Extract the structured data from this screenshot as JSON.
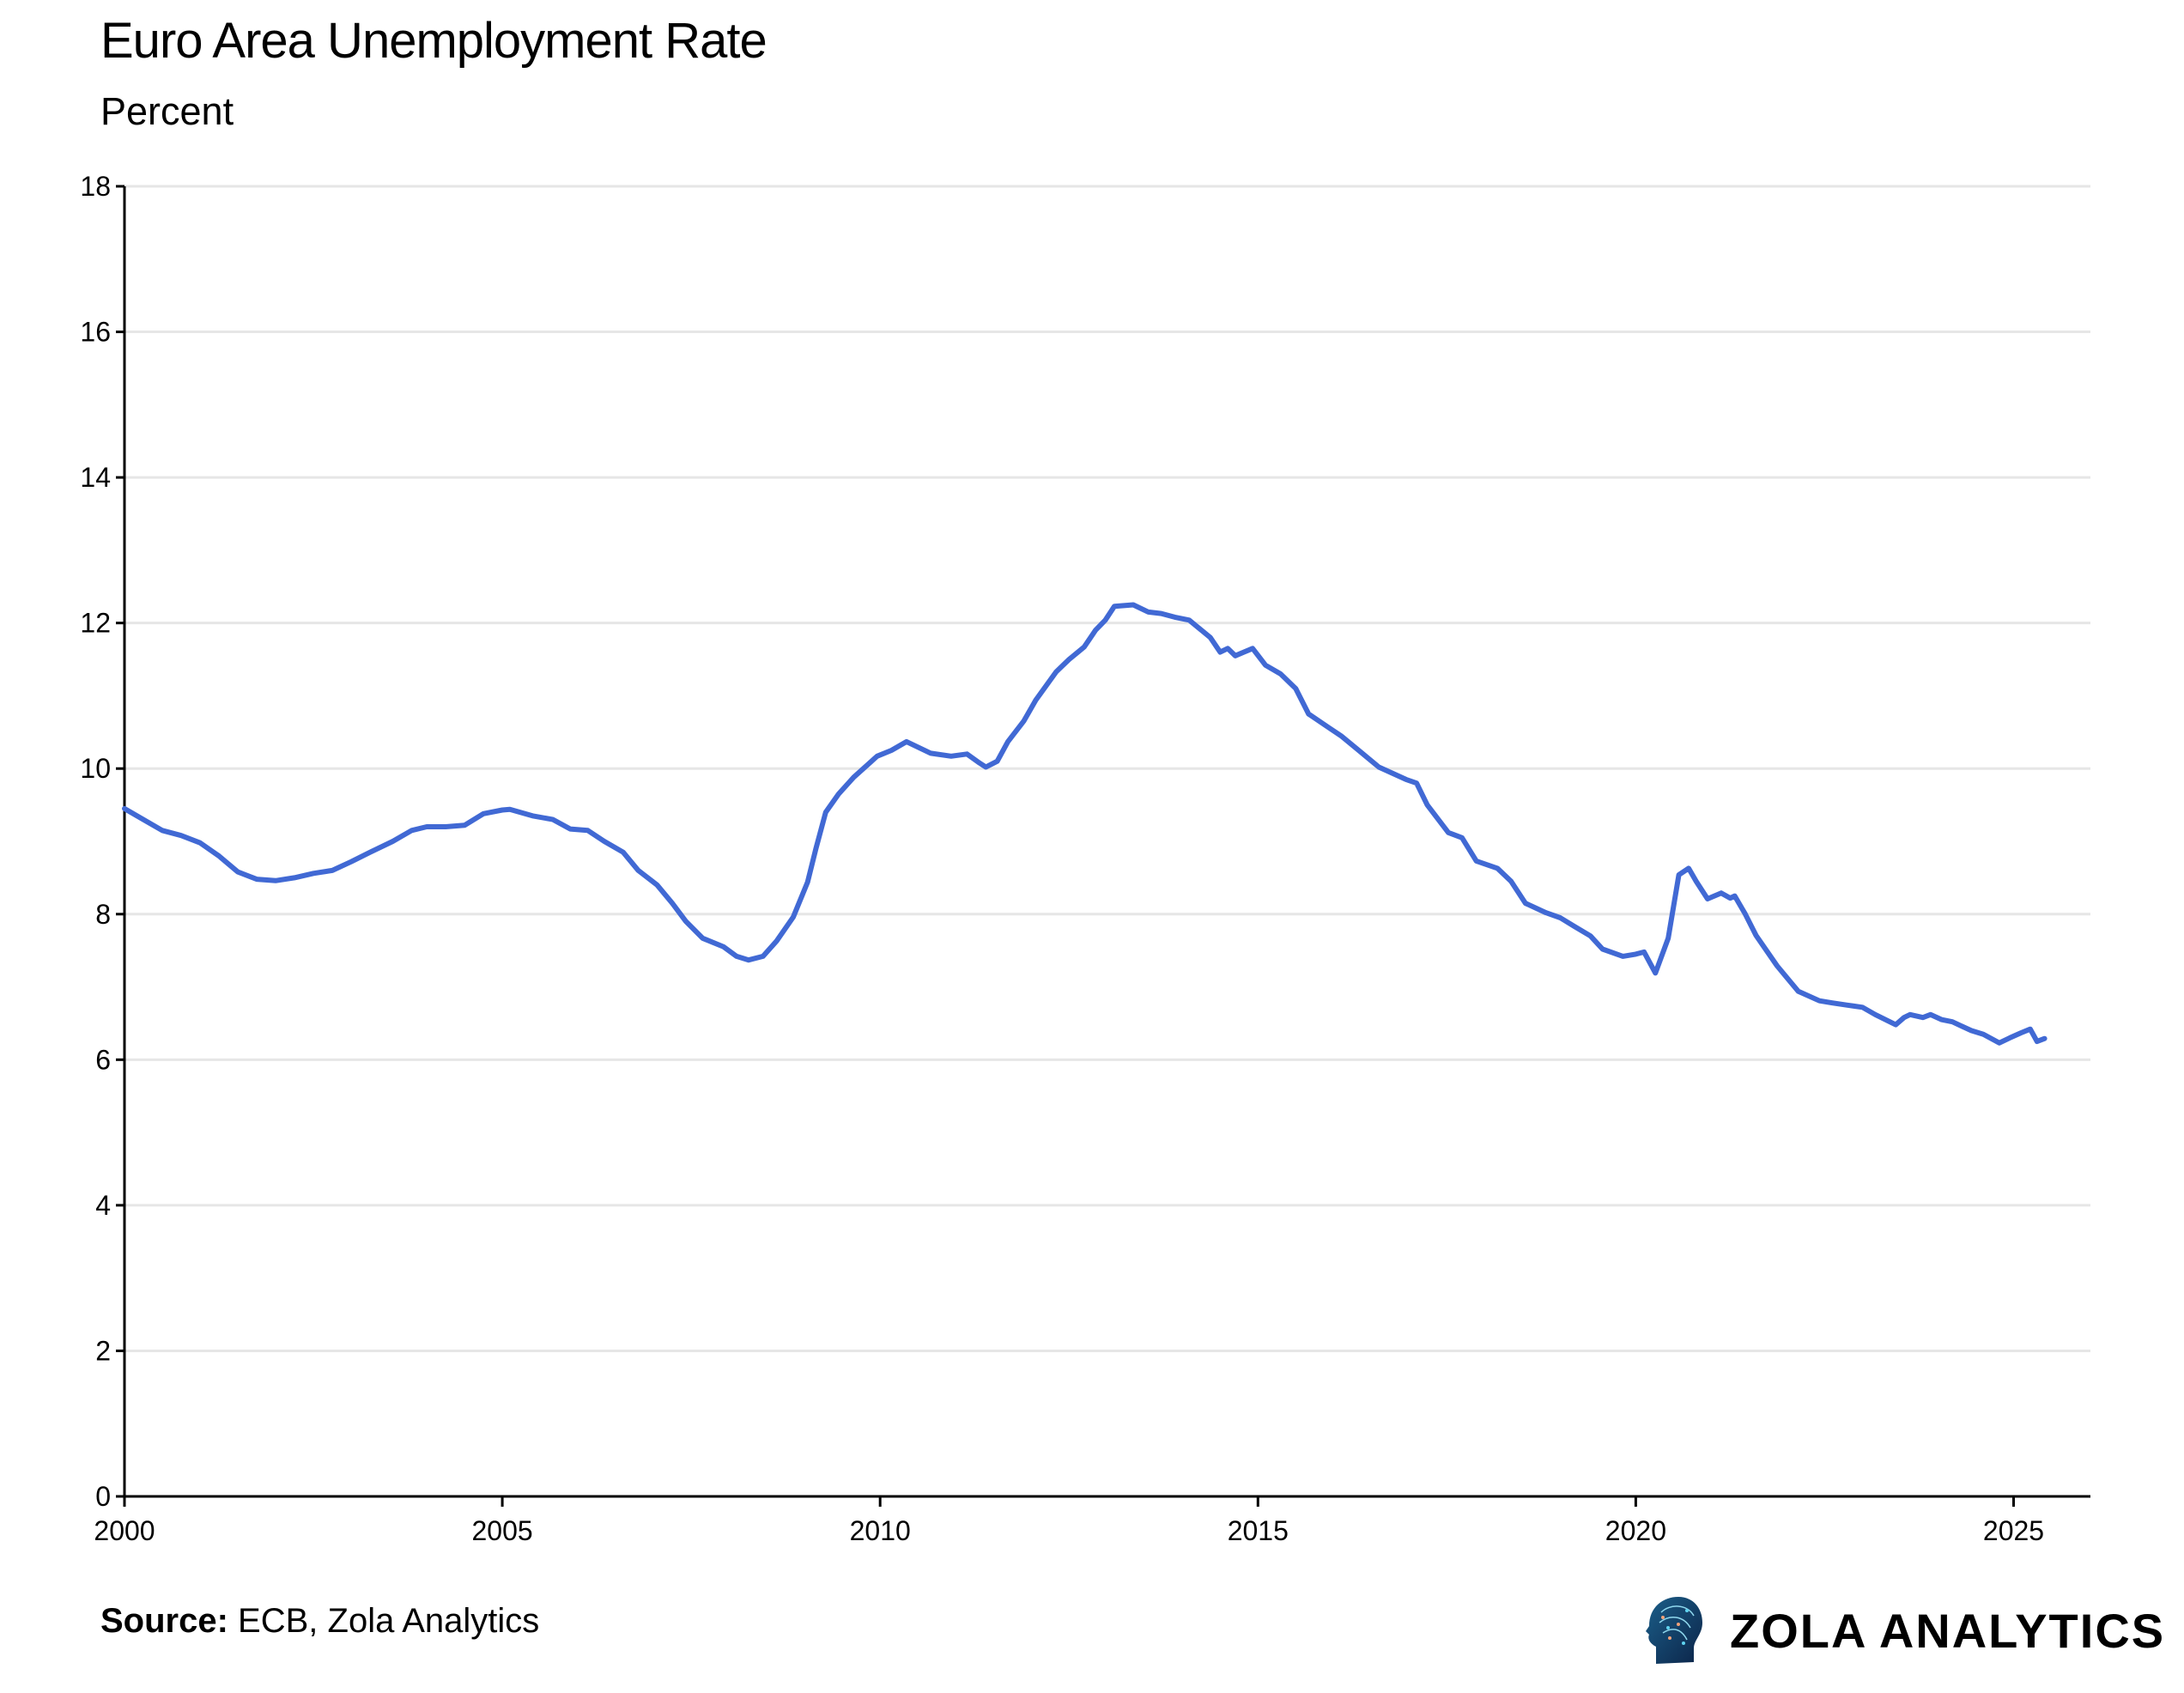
{
  "chart_data": {
    "type": "line",
    "title": "Euro Area Unemployment Rate",
    "subtitle": "Percent",
    "xlabel": "",
    "ylabel": "",
    "xlim": [
      2000,
      2026
    ],
    "ylim": [
      0,
      18
    ],
    "x_ticks": [
      2000,
      2005,
      2010,
      2015,
      2020,
      2025
    ],
    "y_ticks": [
      0,
      2,
      4,
      6,
      8,
      10,
      12,
      14,
      16,
      18
    ],
    "grid": "horizontal",
    "line_color": "#4169d4",
    "series": [
      {
        "x": [
          2000.0,
          2000.25,
          2000.5,
          2000.75,
          2001.0,
          2001.25,
          2001.5,
          2001.75,
          2002.0,
          2002.25,
          2002.5,
          2002.75,
          2003.0,
          2003.25,
          2003.55,
          2003.8,
          2004.0,
          2004.25,
          2004.5,
          2004.75,
          2005.0,
          2005.1,
          2005.4,
          2005.67,
          2005.9,
          2006.13,
          2006.35,
          2006.6,
          2006.8,
          2007.05,
          2007.25,
          2007.43,
          2007.65,
          2007.93,
          2008.1,
          2008.26,
          2008.45,
          2008.63,
          2008.85,
          2009.04,
          2009.15,
          2009.28,
          2009.45,
          2009.65,
          2009.96,
          2010.15,
          2010.35,
          2010.67,
          2010.94,
          2011.15,
          2011.31,
          2011.4,
          2011.55,
          2011.69,
          2011.9,
          2012.06,
          2012.33,
          2012.5,
          2012.7,
          2012.85,
          2012.98,
          2013.1,
          2013.35,
          2013.55,
          2013.72,
          2013.9,
          2014.09,
          2014.37,
          2014.5,
          2014.6,
          2014.7,
          2014.93,
          2015.1,
          2015.3,
          2015.5,
          2015.67,
          2015.94,
          2016.1,
          2016.31,
          2016.6,
          2016.96,
          2017.1,
          2017.24,
          2017.52,
          2017.7,
          2017.89,
          2018.17,
          2018.35,
          2018.54,
          2018.81,
          2019.0,
          2019.19,
          2019.4,
          2019.56,
          2019.83,
          2020.0,
          2020.11,
          2020.26,
          2020.43,
          2020.57,
          2020.7,
          2020.8,
          2020.95,
          2021.13,
          2021.25,
          2021.31,
          2021.45,
          2021.59,
          2021.87,
          2022.15,
          2022.43,
          2022.6,
          2022.8,
          2023.0,
          2023.17,
          2023.44,
          2023.55,
          2023.63,
          2023.8,
          2023.9,
          2024.05,
          2024.19,
          2024.44,
          2024.6,
          2024.81,
          2024.95,
          2025.1,
          2025.22,
          2025.31,
          2025.41
        ],
        "y": [
          9.45,
          9.3,
          9.15,
          9.08,
          8.98,
          8.8,
          8.58,
          8.48,
          8.46,
          8.5,
          8.56,
          8.6,
          8.72,
          8.85,
          9.0,
          9.15,
          9.2,
          9.2,
          9.22,
          9.38,
          9.43,
          9.44,
          9.35,
          9.3,
          9.17,
          9.15,
          9.0,
          8.85,
          8.6,
          8.4,
          8.15,
          7.9,
          7.67,
          7.55,
          7.42,
          7.37,
          7.42,
          7.63,
          7.96,
          8.44,
          8.9,
          9.4,
          9.65,
          9.88,
          10.17,
          10.25,
          10.37,
          10.21,
          10.17,
          10.2,
          10.08,
          10.02,
          10.1,
          10.37,
          10.65,
          10.94,
          11.33,
          11.5,
          11.67,
          11.9,
          12.04,
          12.23,
          12.25,
          12.15,
          12.13,
          12.08,
          12.04,
          11.8,
          11.6,
          11.65,
          11.55,
          11.65,
          11.42,
          11.3,
          11.1,
          10.75,
          10.56,
          10.45,
          10.27,
          10.02,
          9.85,
          9.8,
          9.5,
          9.12,
          9.05,
          8.73,
          8.63,
          8.45,
          8.15,
          8.02,
          7.95,
          7.83,
          7.7,
          7.52,
          7.42,
          7.45,
          7.48,
          7.19,
          7.67,
          8.54,
          8.63,
          8.45,
          8.21,
          8.29,
          8.22,
          8.25,
          8.0,
          7.71,
          7.29,
          6.94,
          6.81,
          6.78,
          6.75,
          6.72,
          6.62,
          6.48,
          6.58,
          6.62,
          6.58,
          6.62,
          6.55,
          6.52,
          6.4,
          6.35,
          6.23,
          6.3,
          6.37,
          6.42,
          6.25,
          6.29
        ]
      }
    ]
  },
  "source": {
    "label": "Source:",
    "text": " ECB, Zola Analytics"
  },
  "brand": {
    "name": "ZOLA ANALYTICS",
    "logo_icon": "head-circuit-icon"
  }
}
